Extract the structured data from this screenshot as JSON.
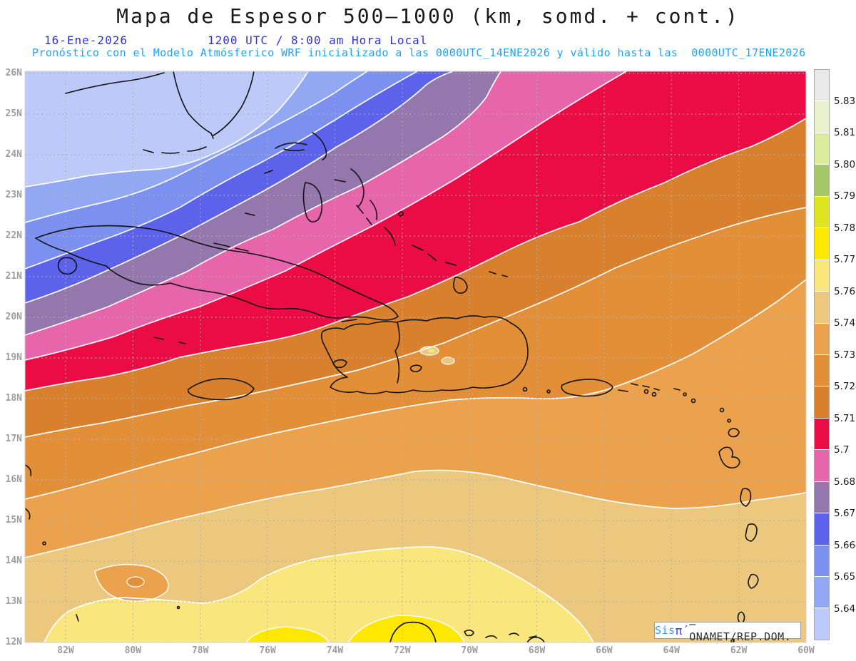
{
  "header": {
    "title": "Mapa de Espesor 500–1000 (km, somd. + cont.)",
    "date": "16-Ene-2026",
    "time_label": "1200 UTC / 8:00 am Hora Local",
    "forecast_note": "Pronóstico con el Modelo Atmósferico WRF inicializado a las 0000UTC_14ENE2026 y válido hasta las  0000UTC_17ENE2026",
    "title_color": "#1a1a1a",
    "date_time_color": "#3030dd",
    "note_color": "#1fa4f5"
  },
  "axes": {
    "lat_labels": [
      "26N",
      "25N",
      "24N",
      "23N",
      "22N",
      "21N",
      "20N",
      "19N",
      "18N",
      "17N",
      "16N",
      "15N",
      "14N",
      "13N",
      "12N"
    ],
    "lon_labels": [
      "82W",
      "80W",
      "78W",
      "76W",
      "74W",
      "72W",
      "70W",
      "68W",
      "66W",
      "64W",
      "62W",
      "60W"
    ],
    "label_color": "#9d9d9d"
  },
  "colorbar": {
    "tick_labels": [
      "5.831",
      "5.819",
      "5.807",
      "5.795",
      "5.783",
      "5.772",
      "5.76",
      "5.748",
      "5.736",
      "5.724",
      "5.712",
      "5.7",
      "5.688",
      "5.676",
      "5.664",
      "5.652",
      "5.64"
    ],
    "segment_colors": [
      "#e9e9e9",
      "#e9f2cd",
      "#dcec9f",
      "#a5c968",
      "#dfe522",
      "#ffe800",
      "#f9e77e",
      "#ecc87f",
      "#eca24c",
      "#e28f38",
      "#d8802e",
      "#ec0c45",
      "#e765ab",
      "#9478ad",
      "#5c63ea",
      "#7b90ef",
      "#93a8f3",
      "#bdc9f9"
    ]
  },
  "credit": {
    "sis": "Sis",
    "pi": "π́",
    "rest": "– ONAMET/REP.DOM."
  },
  "chart_data": {
    "type": "heatmap",
    "title": "Mapa de Espesor 500–1000 (km, somd. + cont.)",
    "subtitle": "Pronóstico WRF inicializado 0000UTC_14ENE2026, válido hasta 0000UTC_17ENE2026",
    "valid_time": "16-Ene-2026 1200 UTC / 8:00 am Hora Local",
    "scale_values": [
      5.831,
      5.819,
      5.807,
      5.795,
      5.783,
      5.772,
      5.76,
      5.748,
      5.736,
      5.724,
      5.712,
      5.7,
      5.688,
      5.676,
      5.664,
      5.652,
      5.64
    ],
    "scale_colors_top_to_bottom": [
      "#e9e9e9",
      "#e9f2cd",
      "#dcec9f",
      "#a5c968",
      "#dfe522",
      "#ffe800",
      "#f9e77e",
      "#ecc87f",
      "#eca24c",
      "#e28f38",
      "#d8802e",
      "#ec0c45",
      "#e765ab",
      "#9478ad",
      "#5c63ea",
      "#7b90ef",
      "#93a8f3",
      "#bdc9f9"
    ],
    "lat_range": [
      "12N",
      "26N"
    ],
    "lon_range": [
      "83W",
      "60W"
    ],
    "legend_position": "right",
    "grid": true,
    "pattern": "Low thickness (blues) northwest over Gulf/Florida, red band 5.7-5.712 diagonally across Cuba toward NE, oranges over Hispaniola/Caribbean, highest values (yellows 5.76-5.783) in far south"
  }
}
